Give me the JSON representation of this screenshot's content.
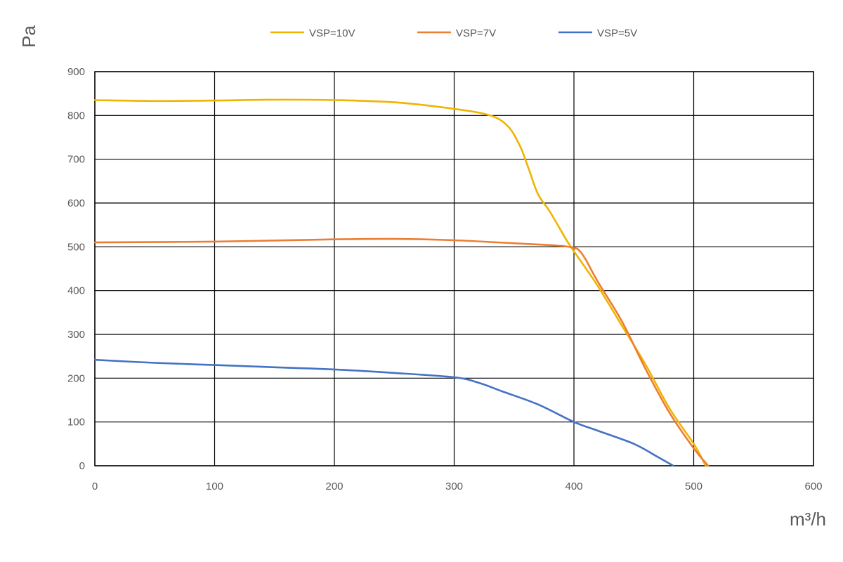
{
  "chart_data": {
    "type": "line",
    "title": "",
    "xlabel": "m³/h",
    "ylabel": "Pa",
    "xlim": [
      0,
      600
    ],
    "ylim": [
      0,
      900
    ],
    "x_ticks": [
      "0",
      "100",
      "200",
      "300",
      "400",
      "500",
      "600"
    ],
    "y_ticks": [
      "0",
      "100",
      "200",
      "300",
      "400",
      "500",
      "600",
      "700",
      "800",
      "900"
    ],
    "grid": true,
    "legend_position": "top",
    "series": [
      {
        "name": "VSP=10V",
        "color": "#F0B400",
        "points": [
          [
            0,
            835
          ],
          [
            50,
            833
          ],
          [
            100,
            834
          ],
          [
            150,
            836
          ],
          [
            200,
            835
          ],
          [
            250,
            830
          ],
          [
            300,
            815
          ],
          [
            330,
            800
          ],
          [
            345,
            775
          ],
          [
            355,
            730
          ],
          [
            362,
            680
          ],
          [
            370,
            620
          ],
          [
            380,
            580
          ],
          [
            395,
            510
          ],
          [
            405,
            470
          ],
          [
            420,
            410
          ],
          [
            440,
            320
          ],
          [
            460,
            230
          ],
          [
            480,
            130
          ],
          [
            500,
            50
          ],
          [
            510,
            0
          ]
        ]
      },
      {
        "name": "VSP=7V",
        "color": "#ED7D31",
        "points": [
          [
            0,
            510
          ],
          [
            100,
            512
          ],
          [
            200,
            517
          ],
          [
            250,
            518
          ],
          [
            300,
            515
          ],
          [
            350,
            508
          ],
          [
            385,
            503
          ],
          [
            400,
            498
          ],
          [
            405,
            490
          ],
          [
            410,
            470
          ],
          [
            420,
            420
          ],
          [
            440,
            330
          ],
          [
            460,
            220
          ],
          [
            480,
            120
          ],
          [
            500,
            40
          ],
          [
            512,
            0
          ]
        ]
      },
      {
        "name": "VSP=5V",
        "color": "#4472C4",
        "points": [
          [
            0,
            242
          ],
          [
            50,
            235
          ],
          [
            100,
            230
          ],
          [
            150,
            225
          ],
          [
            200,
            220
          ],
          [
            250,
            212
          ],
          [
            300,
            202
          ],
          [
            320,
            190
          ],
          [
            340,
            170
          ],
          [
            370,
            140
          ],
          [
            400,
            100
          ],
          [
            420,
            80
          ],
          [
            450,
            50
          ],
          [
            470,
            20
          ],
          [
            483,
            0
          ]
        ]
      }
    ]
  }
}
